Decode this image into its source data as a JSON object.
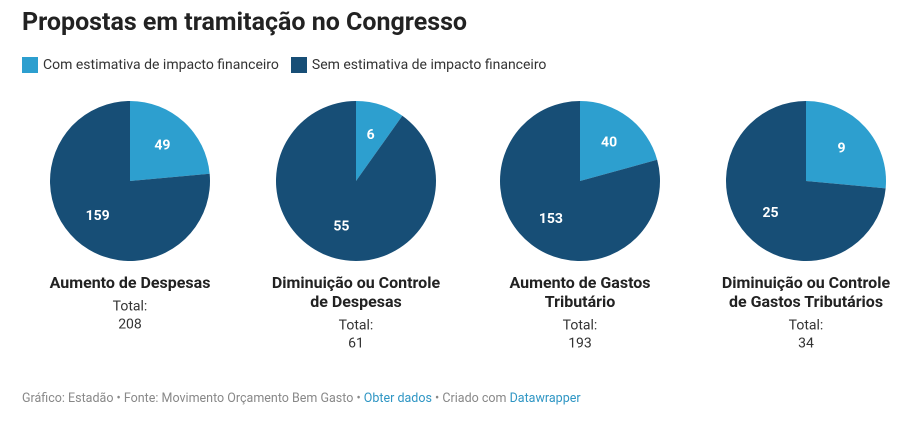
{
  "title": "Propostas em tramitação no Congresso",
  "legend": [
    {
      "name": "Com estimativa de impacto financeiro",
      "color": "#2d9fcf"
    },
    {
      "name": "Sem estimativa de impacto financeiro",
      "color": "#174e76"
    }
  ],
  "footer": {
    "text": "Gráfico: Estadão • Fonte: Movimento Orçamento Bem Gasto • ",
    "link1": "Obter dados",
    "middle": " • Criado com ",
    "link2": "Datawrapper"
  },
  "chart_data": [
    {
      "type": "pie",
      "title_lines": [
        "Aumento de Despesas"
      ],
      "values": [
        49,
        159
      ],
      "total_label": "Total:",
      "total": 208
    },
    {
      "type": "pie",
      "title_lines": [
        "Diminuição ou Controle",
        "de Despesas"
      ],
      "values": [
        6,
        55
      ],
      "total_label": "Total:",
      "total": 61
    },
    {
      "type": "pie",
      "title_lines": [
        "Aumento de Gastos",
        "Tributário"
      ],
      "values": [
        40,
        153
      ],
      "total_label": "Total:",
      "total": 193
    },
    {
      "type": "pie",
      "title_lines": [
        "Diminuição ou Controle",
        "de Gastos Tributários"
      ],
      "values": [
        9,
        25
      ],
      "total_label": "Total:",
      "total": 34
    }
  ]
}
